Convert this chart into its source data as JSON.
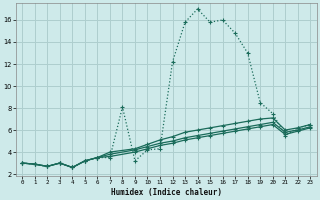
{
  "xlabel": "Humidex (Indice chaleur)",
  "bg_color": "#ceeaea",
  "grid_color": "#aecece",
  "line_color": "#1a6b5a",
  "xlim": [
    -0.5,
    23.5
  ],
  "ylim": [
    1.8,
    17.5
  ],
  "yticks": [
    2,
    4,
    6,
    8,
    10,
    12,
    14,
    16
  ],
  "xticks": [
    0,
    1,
    2,
    3,
    4,
    5,
    6,
    7,
    8,
    9,
    10,
    11,
    12,
    13,
    14,
    15,
    16,
    17,
    18,
    19,
    20,
    21,
    22,
    23
  ],
  "series1": [
    [
      0,
      3.0
    ],
    [
      1,
      2.9
    ],
    [
      2,
      2.7
    ],
    [
      3,
      3.0
    ],
    [
      4,
      2.6
    ],
    [
      5,
      3.2
    ],
    [
      6,
      3.5
    ],
    [
      7,
      3.5
    ],
    [
      8,
      8.1
    ],
    [
      9,
      3.2
    ],
    [
      10,
      4.2
    ],
    [
      11,
      4.3
    ],
    [
      12,
      12.2
    ],
    [
      13,
      15.8
    ],
    [
      14,
      17.0
    ],
    [
      15,
      15.8
    ],
    [
      16,
      16.0
    ],
    [
      17,
      14.8
    ],
    [
      18,
      13.0
    ],
    [
      19,
      8.5
    ],
    [
      20,
      7.5
    ],
    [
      21,
      5.5
    ],
    [
      22,
      6.2
    ],
    [
      23,
      6.5
    ]
  ],
  "series2": [
    [
      0,
      3.0
    ],
    [
      1,
      2.9
    ],
    [
      2,
      2.7
    ],
    [
      3,
      3.0
    ],
    [
      4,
      2.6
    ],
    [
      5,
      3.2
    ],
    [
      6,
      3.5
    ],
    [
      7,
      4.0
    ],
    [
      9,
      4.3
    ],
    [
      10,
      4.7
    ],
    [
      11,
      5.1
    ],
    [
      12,
      5.4
    ],
    [
      13,
      5.8
    ],
    [
      14,
      6.0
    ],
    [
      15,
      6.2
    ],
    [
      16,
      6.4
    ],
    [
      17,
      6.6
    ],
    [
      18,
      6.8
    ],
    [
      19,
      7.0
    ],
    [
      20,
      7.1
    ],
    [
      21,
      6.0
    ],
    [
      22,
      6.2
    ],
    [
      23,
      6.5
    ]
  ],
  "series3": [
    [
      0,
      3.0
    ],
    [
      1,
      2.9
    ],
    [
      2,
      2.7
    ],
    [
      3,
      3.0
    ],
    [
      4,
      2.6
    ],
    [
      5,
      3.2
    ],
    [
      6,
      3.5
    ],
    [
      7,
      3.8
    ],
    [
      9,
      4.2
    ],
    [
      10,
      4.5
    ],
    [
      11,
      4.8
    ],
    [
      12,
      5.0
    ],
    [
      13,
      5.3
    ],
    [
      14,
      5.5
    ],
    [
      15,
      5.7
    ],
    [
      16,
      5.9
    ],
    [
      17,
      6.1
    ],
    [
      18,
      6.3
    ],
    [
      19,
      6.5
    ],
    [
      20,
      6.7
    ],
    [
      21,
      5.8
    ],
    [
      22,
      6.0
    ],
    [
      23,
      6.3
    ]
  ],
  "series4": [
    [
      0,
      3.0
    ],
    [
      1,
      2.9
    ],
    [
      2,
      2.7
    ],
    [
      3,
      3.0
    ],
    [
      4,
      2.6
    ],
    [
      5,
      3.2
    ],
    [
      6,
      3.5
    ],
    [
      7,
      3.6
    ],
    [
      9,
      4.0
    ],
    [
      10,
      4.3
    ],
    [
      11,
      4.6
    ],
    [
      12,
      4.8
    ],
    [
      13,
      5.1
    ],
    [
      14,
      5.3
    ],
    [
      15,
      5.5
    ],
    [
      16,
      5.7
    ],
    [
      17,
      5.9
    ],
    [
      18,
      6.1
    ],
    [
      19,
      6.3
    ],
    [
      20,
      6.5
    ],
    [
      21,
      5.6
    ],
    [
      22,
      5.9
    ],
    [
      23,
      6.2
    ]
  ]
}
